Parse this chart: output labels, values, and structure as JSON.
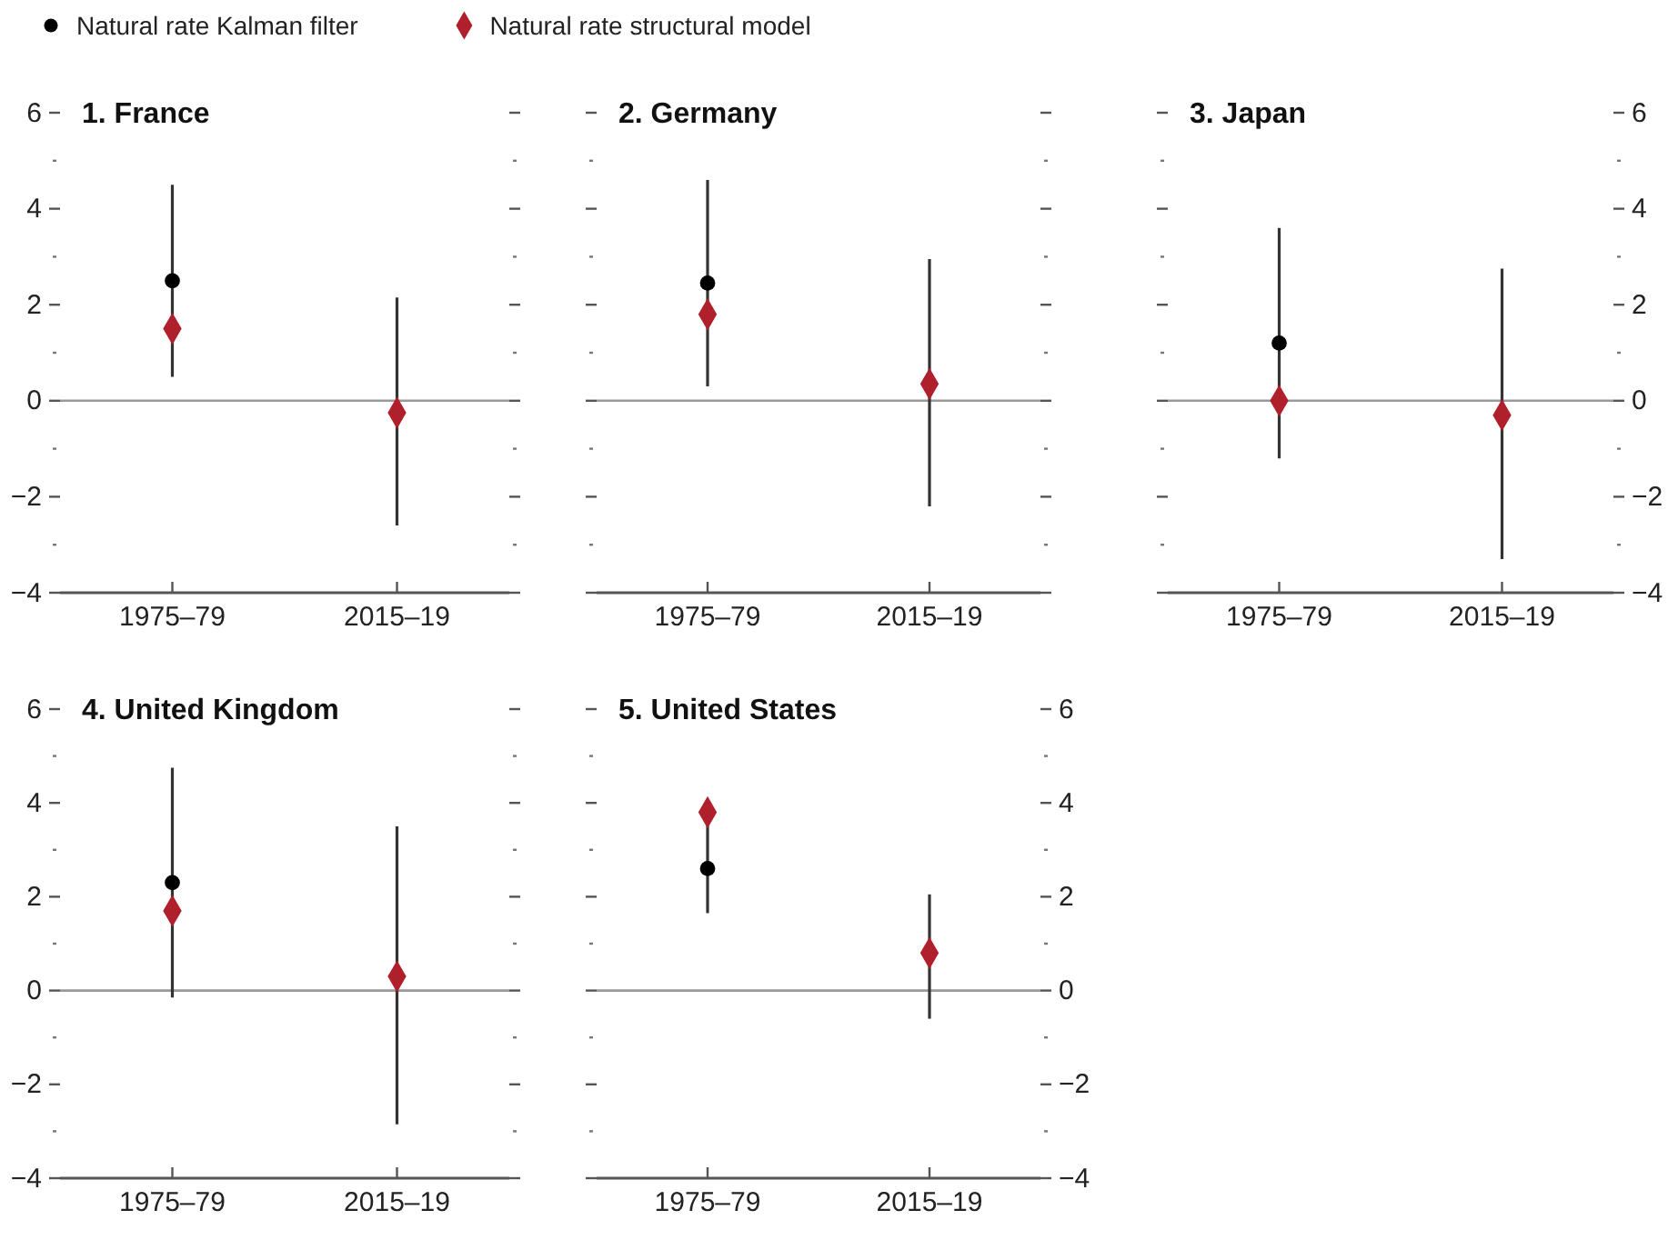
{
  "chart_data": [
    {
      "type": "scatter",
      "title": "1. France",
      "categories": [
        "1975–79",
        "2015–19"
      ],
      "ylim": [
        -4,
        6
      ],
      "yticks": [
        -4,
        -2,
        0,
        2,
        4,
        6
      ],
      "legend": "top",
      "series": [
        {
          "name": "Natural rate Kalman filter",
          "color": "#000000",
          "marker": "circle",
          "values": [
            2.5,
            null
          ]
        },
        {
          "name": "Natural rate structural model",
          "color": "#b0202c",
          "marker": "diamond",
          "values": [
            1.5,
            -0.25
          ],
          "errors": [
            [
              0.5,
              4.5
            ],
            [
              -2.6,
              2.15
            ]
          ]
        }
      ],
      "ref_lines": [
        {
          "axis": "y",
          "value": 0,
          "color": "#9a9a9a"
        }
      ]
    },
    {
      "type": "scatter",
      "title": "2. Germany",
      "categories": [
        "1975–79",
        "2015–19"
      ],
      "ylim": [
        -4,
        6
      ],
      "yticks": [
        -4,
        -2,
        0,
        2,
        4,
        6
      ],
      "tick_labels": "x",
      "series": [
        {
          "color": "#000000",
          "marker": "circle",
          "values": [
            2.45,
            null
          ]
        },
        {
          "color": "#b0202c",
          "marker": "diamond",
          "values": [
            1.8,
            0.35
          ],
          "errors": [
            [
              0.3,
              4.6
            ],
            [
              -2.2,
              2.95
            ]
          ]
        }
      ],
      "ref_lines": [
        {
          "axis": "y",
          "value": 0,
          "color": "#9a9a9a"
        }
      ]
    },
    {
      "type": "scatter",
      "title": "3. Japan",
      "categories": [
        "1975–79",
        "2015–19"
      ],
      "y2lim": [
        -4,
        6
      ],
      "y2ticks": [
        -4,
        -2,
        0,
        2,
        4,
        6
      ],
      "series": [
        {
          "color": "#000000",
          "marker": "circle",
          "axis": "y2",
          "values": [
            1.2,
            null
          ]
        },
        {
          "color": "#b0202c",
          "marker": "diamond",
          "axis": "y2",
          "values": [
            0,
            -0.3
          ],
          "errors": [
            [
              -1.2,
              3.6
            ],
            [
              -3.3,
              2.75
            ]
          ]
        }
      ],
      "ref_lines": [
        {
          "axis": "y2",
          "value": 0,
          "color": "#9a9a9a"
        }
      ]
    },
    {
      "type": "scatter",
      "title": "4. United Kingdom",
      "categories": [
        "1975–79",
        "2015–19"
      ],
      "ylim": [
        -4,
        6
      ],
      "yticks": [
        -4,
        -2,
        0,
        2,
        4,
        6
      ],
      "series": [
        {
          "color": "#000000",
          "marker": "circle",
          "values": [
            2.3,
            null
          ]
        },
        {
          "color": "#b0202c",
          "marker": "diamond",
          "values": [
            1.7,
            0.3
          ],
          "errors": [
            [
              -0.15,
              4.75
            ],
            [
              -2.85,
              3.5
            ]
          ]
        }
      ],
      "ref_lines": [
        {
          "axis": "y",
          "value": 0,
          "color": "#9a9a9a"
        }
      ]
    },
    {
      "type": "scatter",
      "title": "5. United States",
      "categories": [
        "1975–79",
        "2015–19"
      ],
      "y2lim": [
        -4,
        6
      ],
      "y2ticks": [
        -4,
        -2,
        0,
        2,
        4,
        6
      ],
      "series": [
        {
          "color": "#000000",
          "marker": "circle",
          "axis": "y2",
          "values": [
            2.6,
            null
          ]
        },
        {
          "color": "#b0202c",
          "marker": "diamond",
          "axis": "y2",
          "values": [
            3.8,
            0.8
          ],
          "errors": [
            [
              1.65,
              3.95
            ],
            [
              -0.6,
              2.05
            ]
          ]
        }
      ],
      "ref_lines": [
        {
          "axis": "y2",
          "value": 0,
          "color": "#9a9a9a"
        }
      ]
    }
  ]
}
